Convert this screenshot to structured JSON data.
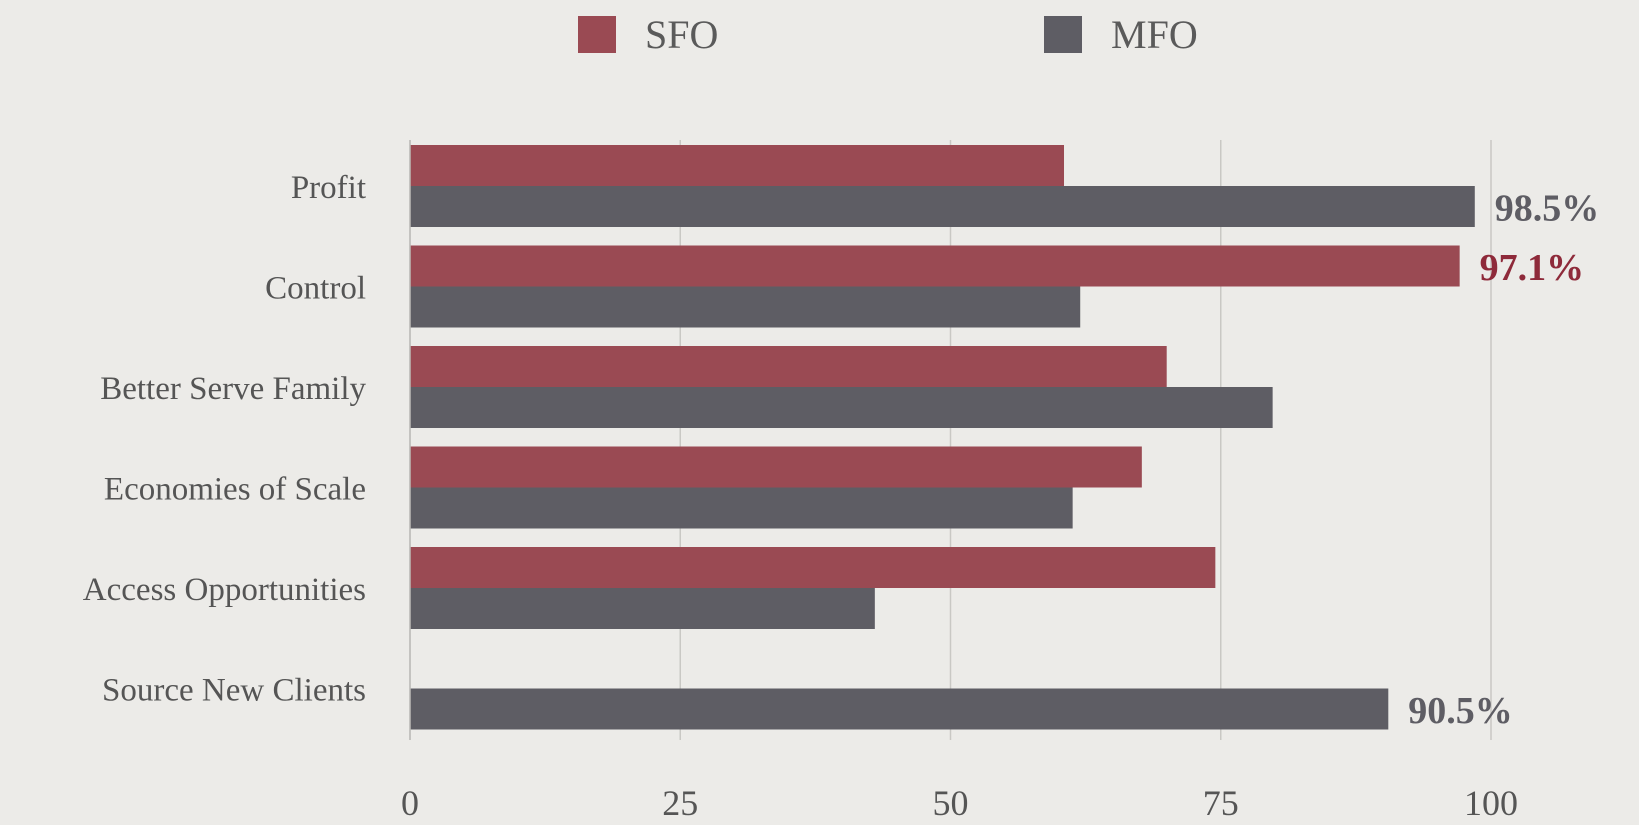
{
  "chart_data": {
    "type": "bar",
    "orientation": "horizontal",
    "categories": [
      "Profit",
      "Control",
      "Better Serve Family",
      "Economies of Scale",
      "Access Opportunities",
      "Source New Clients"
    ],
    "series": [
      {
        "name": "SFO",
        "color": "#9a4a53",
        "values": [
          60.5,
          97.1,
          70,
          67.7,
          74.5,
          null
        ]
      },
      {
        "name": "MFO",
        "color": "#5e5d64",
        "values": [
          98.5,
          62,
          79.8,
          61.3,
          43,
          90.5
        ]
      }
    ],
    "data_labels": [
      {
        "category": "Profit",
        "series": "MFO",
        "text": "98.5%",
        "color": "#5e5d64"
      },
      {
        "category": "Control",
        "series": "SFO",
        "text": "97.1%",
        "color": "#8e2a3a"
      },
      {
        "category": "Source New Clients",
        "series": "MFO",
        "text": "90.5%",
        "color": "#5e5d64"
      }
    ],
    "xlim": [
      0,
      100
    ],
    "xticks": [
      "0",
      "25",
      "50",
      "75",
      "100"
    ],
    "grid": true,
    "legend_position": "top-center"
  }
}
